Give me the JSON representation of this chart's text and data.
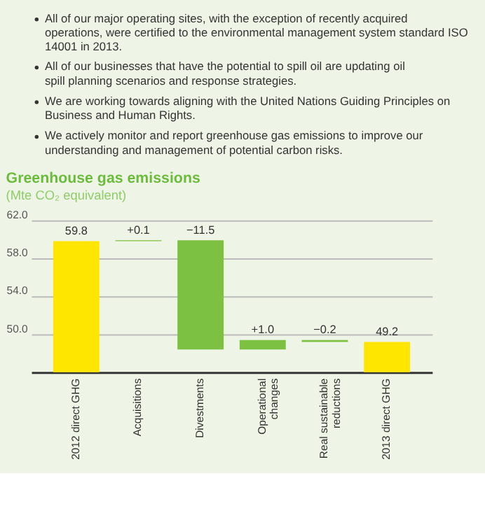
{
  "chart_data": {
    "type": "bar",
    "title": "Greenhouse gas emissions",
    "subtitle": "(Mte CO₂ equivalent)",
    "annotations": [
      "All of our major operating sites, with the exception of recently acquired operations, were certified to the environmental management system standard ISO 14001 in 2013.",
      "All of our businesses that have the potential to spill oil are updating oil spill planning scenarios and response strategies.",
      "We are working towards aligning with the United Nations Guiding Principles on Business and Human Rights.",
      "We actively monitor and report greenhouse gas emissions to improve our understanding and management of potential carbon risks."
    ],
    "categories": [
      "2012 direct GHG",
      "Acquisitions",
      "Divestments",
      "Operational changes",
      "Real sustainable reductions",
      "2013 direct GHG"
    ],
    "values": [
      59.8,
      0.1,
      -11.5,
      1.0,
      -0.2,
      49.2
    ],
    "base": [
      0,
      59.8,
      59.9,
      48.4,
      49.4,
      0
    ],
    "colors": [
      "#ffe600",
      "#7dc142",
      "#7dc142",
      "#7dc142",
      "#7dc142",
      "#ffe600"
    ],
    "value_labels": [
      "59.8",
      "+0.1",
      "−11.5",
      "+1.0",
      "−0.2",
      "49.2"
    ],
    "ylim": [
      46,
      62
    ],
    "yticks": [
      {
        "value": 50,
        "label": "50.0"
      },
      {
        "value": 54,
        "label": "54.0"
      },
      {
        "value": 58,
        "label": "58.0"
      },
      {
        "value": 62,
        "label": "62.0"
      }
    ],
    "grid": "y"
  }
}
